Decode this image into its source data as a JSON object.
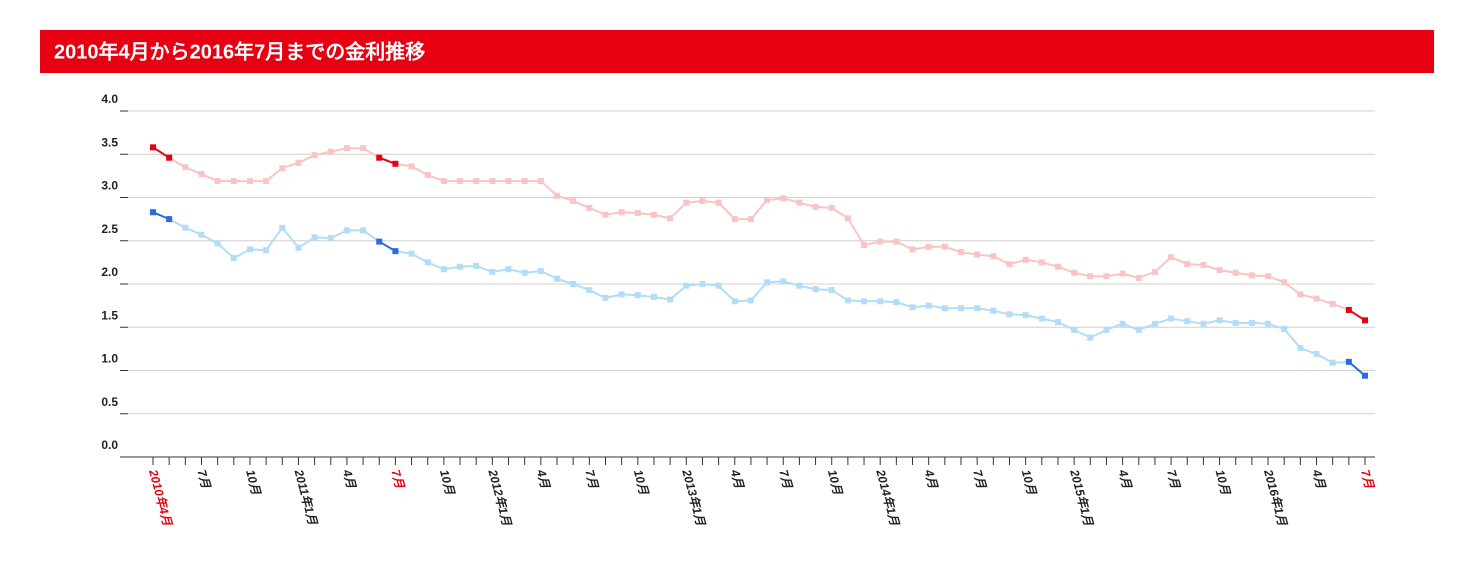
{
  "chart_data": {
    "type": "line",
    "title": "2010年4月から2016年7月までの金利推移",
    "categories": [
      "2010年4月",
      null,
      null,
      "7月",
      null,
      null,
      "10月",
      null,
      null,
      "2011年1月",
      null,
      null,
      "4月",
      null,
      null,
      "7月",
      null,
      null,
      "10月",
      null,
      null,
      "2012年1月",
      null,
      null,
      "4月",
      null,
      null,
      "7月",
      null,
      null,
      "10月",
      null,
      null,
      "2013年1月",
      null,
      null,
      "4月",
      null,
      null,
      "7月",
      null,
      null,
      "10月",
      null,
      null,
      "2014年1月",
      null,
      null,
      "4月",
      null,
      null,
      "7月",
      null,
      null,
      "10月",
      null,
      null,
      "2015年1月",
      null,
      null,
      "4月",
      null,
      null,
      "7月",
      null,
      null,
      "10月",
      null,
      null,
      "2016年1月",
      null,
      null,
      "4月",
      null,
      null,
      "7月"
    ],
    "series": [
      {
        "color": "#f9c4c4",
        "highlight_color": "#e60012",
        "values": [
          3.58,
          3.46,
          3.35,
          3.27,
          3.19,
          3.19,
          3.19,
          3.19,
          3.34,
          3.4,
          3.49,
          3.53,
          3.57,
          3.57,
          3.46,
          3.39,
          3.36,
          3.26,
          3.19,
          3.19,
          3.19,
          3.19,
          3.19,
          3.19,
          3.19,
          3.02,
          2.96,
          2.88,
          2.8,
          2.83,
          2.82,
          2.8,
          2.76,
          2.94,
          2.96,
          2.94,
          2.75,
          2.75,
          2.97,
          2.99,
          2.94,
          2.89,
          2.88,
          2.76,
          2.45,
          2.49,
          2.49,
          2.4,
          2.43,
          2.43,
          2.37,
          2.34,
          2.32,
          2.23,
          2.28,
          2.25,
          2.2,
          2.13,
          2.09,
          2.09,
          2.12,
          2.07,
          2.14,
          2.31,
          2.23,
          2.22,
          2.16,
          2.13,
          2.1,
          2.09,
          2.02,
          1.88,
          1.83,
          1.77,
          1.7,
          1.58
        ]
      },
      {
        "color": "#b3dcf7",
        "highlight_color": "#2a6be0",
        "values": [
          2.83,
          2.75,
          2.65,
          2.57,
          2.47,
          2.3,
          2.4,
          2.39,
          2.65,
          2.42,
          2.54,
          2.53,
          2.62,
          2.62,
          2.49,
          2.38,
          2.35,
          2.25,
          2.17,
          2.2,
          2.21,
          2.14,
          2.17,
          2.13,
          2.15,
          2.06,
          2.0,
          1.93,
          1.84,
          1.88,
          1.87,
          1.85,
          1.82,
          1.98,
          2.0,
          1.98,
          1.8,
          1.81,
          2.02,
          2.03,
          1.98,
          1.94,
          1.93,
          1.81,
          1.8,
          1.8,
          1.79,
          1.73,
          1.75,
          1.72,
          1.72,
          1.72,
          1.69,
          1.65,
          1.64,
          1.6,
          1.56,
          1.47,
          1.38,
          1.47,
          1.54,
          1.47,
          1.54,
          1.6,
          1.57,
          1.54,
          1.58,
          1.55,
          1.55,
          1.54,
          1.48,
          1.26,
          1.19,
          1.09,
          1.1,
          0.94
        ]
      }
    ],
    "highlight_ranges": [
      [
        0,
        1
      ],
      [
        14,
        15
      ],
      [
        74,
        75
      ]
    ],
    "highlight_categories": [
      0,
      15,
      75
    ],
    "label_highlight_color": "#e60012",
    "ylim": [
      0,
      4
    ],
    "yticks": [
      {
        "value": 0,
        "label": "0.0"
      },
      0.5,
      {
        "value": 1,
        "label": "1.0"
      },
      1.5,
      {
        "value": 2,
        "label": "2.0"
      },
      2.5,
      {
        "value": 3,
        "label": "3.0"
      },
      3.5,
      {
        "value": 4,
        "label": "4.0"
      }
    ],
    "grid": true
  }
}
